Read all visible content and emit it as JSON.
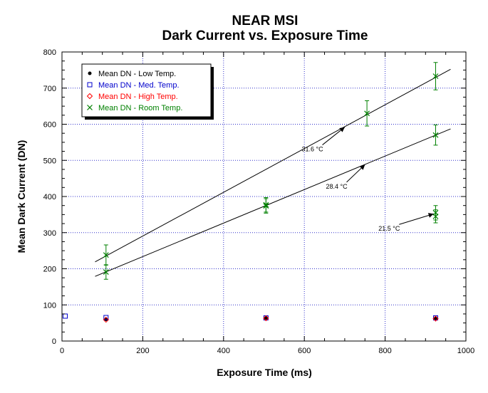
{
  "chart_data": {
    "type": "scatter",
    "title": "NEAR MSI",
    "subtitle": "Dark Current vs. Exposure Time",
    "xlabel": "Exposure Time (ms)",
    "ylabel": "Mean Dark Current (DN)",
    "xlim": [
      0,
      1000
    ],
    "ylim": [
      0,
      800
    ],
    "x_ticks": [
      0,
      200,
      400,
      600,
      800,
      1000
    ],
    "y_ticks": [
      0,
      100,
      200,
      300,
      400,
      500,
      600,
      700,
      800
    ],
    "x_tick_labels": [
      "0",
      "200",
      "400",
      "600",
      "800",
      "1000"
    ],
    "y_tick_labels": [
      "0",
      "100",
      "200",
      "300",
      "400",
      "500",
      "600",
      "700",
      "800"
    ],
    "grid": true,
    "legend_position": "top-left",
    "series": [
      {
        "name": "Mean DN - Low Temp.",
        "marker": "filled-circle",
        "color": "#000000",
        "x": [
          109,
          505,
          925
        ],
        "y": [
          60,
          64,
          63
        ]
      },
      {
        "name": "Mean DN - Med. Temp.",
        "marker": "open-square",
        "color": "#0000cc",
        "x": [
          8,
          109,
          505,
          925
        ],
        "y": [
          69,
          65,
          64,
          64
        ]
      },
      {
        "name": "Mean DN - High Temp.",
        "marker": "open-diamond",
        "color": "#ff0000",
        "x": [
          109,
          505,
          925
        ],
        "y": [
          59,
          63,
          62
        ]
      },
      {
        "name": "Mean DN - Room Temp.",
        "marker": "x",
        "color": "#008000",
        "points": [
          {
            "x": 109,
            "y": 238,
            "err": 28
          },
          {
            "x": 109,
            "y": 191,
            "err": 20
          },
          {
            "x": 505,
            "y": 377,
            "err": 20
          },
          {
            "x": 505,
            "y": 374,
            "err": 20
          },
          {
            "x": 755,
            "y": 630,
            "err": 35
          },
          {
            "x": 925,
            "y": 733,
            "err": 38
          },
          {
            "x": 925,
            "y": 570,
            "err": 28
          },
          {
            "x": 925,
            "y": 355,
            "err": 20
          },
          {
            "x": 925,
            "y": 345,
            "err": 18
          }
        ]
      }
    ],
    "fit_lines": [
      {
        "x1": 82,
        "y1": 219,
        "x2": 962,
        "y2": 752
      },
      {
        "x1": 82,
        "y1": 179,
        "x2": 962,
        "y2": 587
      }
    ],
    "annotations": [
      {
        "text": "31.6 °C",
        "x": 620,
        "y": 525,
        "arrow_to_x": 700,
        "arrow_to_y": 592
      },
      {
        "text": "28.4 °C",
        "x": 680,
        "y": 422,
        "arrow_to_x": 750,
        "arrow_to_y": 488
      },
      {
        "text": "21.5 °C",
        "x": 810,
        "y": 305,
        "arrow_to_x": 920,
        "arrow_to_y": 352
      }
    ]
  }
}
